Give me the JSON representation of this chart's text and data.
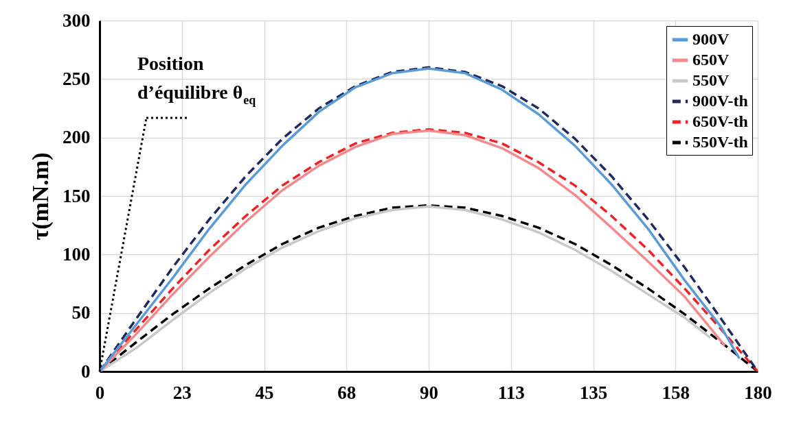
{
  "chart_data": {
    "type": "line",
    "ylabel": "τ(mN.m)",
    "xlim": [
      0,
      180
    ],
    "ylim": [
      0,
      300
    ],
    "xticks": [
      0,
      {
        "value": 22.5,
        "label": "23"
      },
      45,
      {
        "value": 67.5,
        "label": "68"
      },
      90,
      {
        "value": 112.5,
        "label": "113"
      },
      135,
      {
        "value": 157.5,
        "label": "158"
      },
      180
    ],
    "yticks": [
      0,
      50,
      100,
      150,
      200,
      250,
      300
    ],
    "grid": true,
    "legend": "top right",
    "marker": "none",
    "annotations": [
      {
        "text": "Position d’équilibre θ$_{eq}$",
        "x": 0,
        "y": 0
      }
    ],
    "series": [
      {
        "name": "900V",
        "color": "#5b9bd5",
        "line_style": "solid",
        "x": [
          0,
          10,
          20,
          30,
          40,
          50,
          60,
          70,
          80,
          90,
          100,
          110,
          120,
          130,
          140,
          150,
          160,
          170,
          175
        ],
        "values": [
          0,
          40,
          80,
          122,
          160,
          193,
          222,
          243,
          255,
          259,
          255,
          241,
          220,
          193,
          160,
          122,
          78,
          38,
          11
        ]
      },
      {
        "name": "650V",
        "color": "#f4898c",
        "line_style": "solid",
        "x": [
          0,
          10,
          20,
          30,
          40,
          50,
          60,
          70,
          80,
          90,
          100,
          110,
          120,
          130,
          140,
          150,
          160,
          171
        ],
        "values": [
          0,
          32,
          66,
          98,
          128,
          155,
          176,
          192,
          203,
          206,
          202,
          191,
          174,
          151,
          123,
          94,
          64,
          22
        ]
      },
      {
        "name": "550V",
        "color": "#c8c8c8",
        "line_style": "solid",
        "x": [
          0,
          10,
          20,
          30,
          40,
          50,
          60,
          70,
          80,
          90,
          100,
          110,
          120,
          130,
          140,
          150,
          160,
          167
        ],
        "values": [
          0,
          20,
          44,
          67,
          88,
          106,
          120,
          131,
          138,
          141,
          138,
          130,
          119,
          104,
          86,
          66,
          46,
          29
        ]
      },
      {
        "name": "900V-th",
        "color": "#1f2a5c",
        "line_style": "dashed",
        "x": [
          0,
          10,
          20,
          30,
          40,
          50,
          60,
          70,
          80,
          90,
          100,
          110,
          120,
          130,
          140,
          150,
          160,
          170,
          180
        ],
        "values": [
          0,
          45,
          89,
          130,
          167,
          199,
          225,
          244,
          256,
          260,
          256,
          244,
          225,
          199,
          167,
          130,
          89,
          45,
          0
        ]
      },
      {
        "name": "650V-th",
        "color": "#ee2226",
        "line_style": "dashed",
        "x": [
          0,
          10,
          20,
          30,
          40,
          50,
          60,
          70,
          80,
          90,
          100,
          110,
          120,
          130,
          140,
          150,
          160,
          170,
          180
        ],
        "values": [
          0,
          36,
          71,
          104,
          133,
          159,
          179,
          195,
          204,
          207,
          204,
          195,
          179,
          159,
          133,
          104,
          71,
          36,
          0
        ]
      },
      {
        "name": "550V-th",
        "color": "#000000",
        "line_style": "dashed",
        "x": [
          0,
          10,
          20,
          30,
          40,
          50,
          60,
          70,
          80,
          90,
          100,
          110,
          120,
          130,
          140,
          150,
          160,
          170,
          180
        ],
        "values": [
          0,
          25,
          49,
          71,
          91,
          109,
          123,
          133,
          140,
          142,
          140,
          133,
          123,
          109,
          91,
          71,
          49,
          25,
          0
        ]
      }
    ]
  }
}
